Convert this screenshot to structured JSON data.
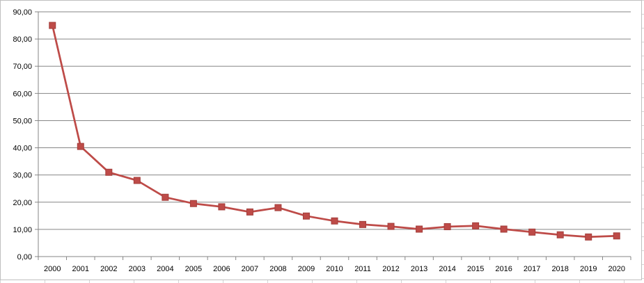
{
  "chart_data": {
    "type": "line",
    "title": "",
    "xlabel": "",
    "ylabel": "",
    "categories": [
      "2000",
      "2001",
      "2002",
      "2003",
      "2004",
      "2005",
      "2006",
      "2007",
      "2008",
      "2009",
      "2010",
      "2011",
      "2012",
      "2013",
      "2014",
      "2015",
      "2016",
      "2017",
      "2018",
      "2019",
      "2020"
    ],
    "series": [
      {
        "values": [
          85.0,
          40.5,
          31.0,
          28.0,
          21.8,
          19.5,
          18.3,
          16.4,
          18.0,
          14.9,
          13.1,
          11.8,
          11.1,
          10.1,
          11.0,
          11.3,
          10.1,
          9.0,
          8.0,
          7.2,
          7.6
        ]
      }
    ],
    "ylim": [
      0,
      90
    ],
    "yticks": [
      "0,00",
      "10,00",
      "20,00",
      "30,00",
      "40,00",
      "50,00",
      "60,00",
      "70,00",
      "80,00",
      "90,00"
    ],
    "grid": true,
    "legend": "none",
    "colors": {
      "line": "#be4b48",
      "marker": "#be4b48",
      "gridline": "#868686",
      "axis": "#868686"
    }
  }
}
